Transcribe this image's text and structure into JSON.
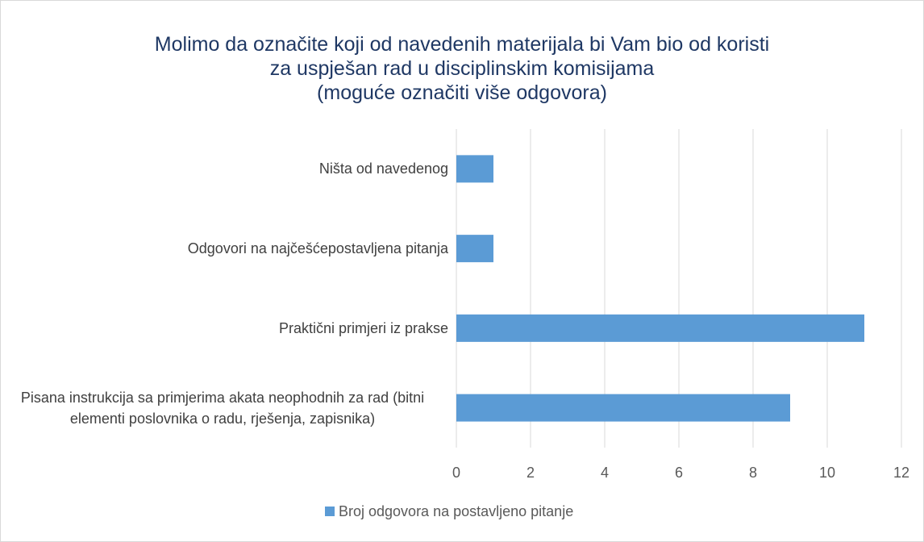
{
  "chart_data": {
    "type": "bar",
    "orientation": "horizontal",
    "title": "Molimo da označite koji od navedenih materijala bi Vam bio od koristi\nza uspješan rad u disciplinskim komisijama\n(moguće označiti više odgovora)",
    "categories": [
      "Ništa od navedenog",
      "Odgovori na najčešćepostavljena pitanja",
      "Praktični primjeri iz prakse",
      "Pisana instrukcija sa primjerima akata neophodnih za rad (bitni elementi poslovnika o radu, rješenja, zapisnika)"
    ],
    "series": [
      {
        "name": "Broj odgovora na postavljeno pitanje",
        "color": "#5b9bd5",
        "values": [
          1,
          1,
          11,
          9
        ]
      }
    ],
    "xlim": [
      0,
      12
    ],
    "xticks": [
      0,
      2,
      4,
      6,
      8,
      10,
      12
    ],
    "grid": true,
    "legend": "bottom"
  }
}
